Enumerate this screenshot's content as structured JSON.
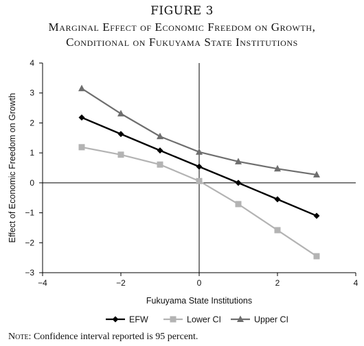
{
  "figure": {
    "label": "FIGURE 3",
    "title_line1": "Marginal Effect of Economic Freedom on Growth,",
    "title_line2": "Conditional on Fukuyama State Institutions"
  },
  "note": {
    "lead": "Note:",
    "text": " Confidence interval reported is 95 percent."
  },
  "chart_data": {
    "type": "line",
    "xlabel": "Fukuyama State Institutions",
    "ylabel": "Effect of Economic Freedom on Growth",
    "xlim": [
      -4,
      4
    ],
    "ylim": [
      -3,
      4
    ],
    "xticks": [
      -4,
      -2,
      0,
      2,
      4
    ],
    "yticks": [
      -3,
      -2,
      -1,
      0,
      1,
      2,
      3,
      4
    ],
    "xtick_labels": [
      "−4",
      "−2",
      "0",
      "2",
      "4"
    ],
    "ytick_labels": [
      "−3",
      "−2",
      "−1",
      "0",
      "1",
      "2",
      "3",
      "4"
    ],
    "x": [
      -3,
      -2,
      -1,
      0,
      1,
      2,
      3
    ],
    "legend_position": "bottom",
    "grid": false,
    "series": [
      {
        "name": "EFW",
        "marker": "diamond",
        "color": "#000000",
        "values": [
          2.18,
          1.63,
          1.08,
          0.54,
          0.0,
          -0.55,
          -1.1
        ]
      },
      {
        "name": "Lower CI",
        "marker": "square",
        "color": "#b3b3b3",
        "values": [
          1.19,
          0.94,
          0.61,
          0.06,
          -0.71,
          -1.58,
          -2.45
        ]
      },
      {
        "name": "Upper CI",
        "marker": "triangle",
        "color": "#6e6e6e",
        "values": [
          3.15,
          2.31,
          1.55,
          1.03,
          0.71,
          0.47,
          0.27
        ]
      }
    ]
  }
}
